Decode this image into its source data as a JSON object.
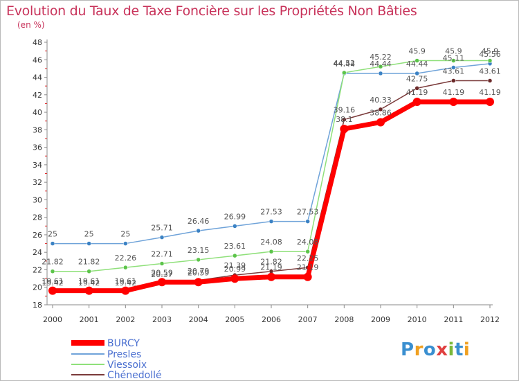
{
  "chart_data": {
    "type": "line",
    "title": "Evolution du Taux de Taxe Foncière sur les Propriétés Non Bâties",
    "ylabel": "(en %)",
    "ylim": [
      18,
      48
    ],
    "yticks": [
      18,
      20,
      22,
      24,
      26,
      28,
      30,
      32,
      34,
      36,
      38,
      40,
      42,
      44,
      46,
      48
    ],
    "categories": [
      "2000",
      "2001",
      "2002",
      "2003",
      "2004",
      "2005",
      "2006",
      "2007",
      "2008",
      "2009",
      "2010",
      "2011",
      "2012"
    ],
    "series": [
      {
        "name": "BURCY",
        "color": "#ff0000",
        "line_width": 7,
        "values": [
          19.61,
          19.61,
          19.61,
          20.59,
          20.59,
          20.99,
          21.19,
          21.19,
          38.1,
          38.86,
          41.19,
          41.19,
          41.19
        ],
        "labels": [
          "19.61",
          "19.61",
          "19.61",
          "20.59",
          "20.59",
          "20.99",
          "21.19",
          "21.19",
          "38.1",
          "38.86",
          "41.19",
          "41.19",
          "41.19"
        ]
      },
      {
        "name": "Presles",
        "color": "#6fa3d9",
        "marker_color": "#3b82c4",
        "line_width": 1.5,
        "values": [
          25,
          25,
          25,
          25.71,
          26.46,
          26.99,
          27.53,
          27.53,
          44.44,
          44.44,
          44.44,
          45.11,
          45.56
        ],
        "labels": [
          "25",
          "25",
          "25",
          "25.71",
          "26.46",
          "26.99",
          "27.53",
          "27.53",
          "44.44",
          "44.44",
          "44.44",
          "45.11",
          "45.56"
        ]
      },
      {
        "name": "Viessoix",
        "color": "#8fe07a",
        "marker_color": "#5cc44a",
        "line_width": 1.5,
        "values": [
          21.82,
          21.82,
          22.26,
          22.71,
          23.15,
          23.61,
          24.08,
          24.08,
          44.52,
          45.22,
          45.9,
          45.9,
          45.9
        ],
        "labels": [
          "21.82",
          "21.82",
          "22.26",
          "22.71",
          "23.15",
          "23.61",
          "24.08",
          "24.08",
          "44.52",
          "45.22",
          "45.9",
          "45.9",
          "45.9"
        ]
      },
      {
        "name": "Chénedollé",
        "color": "#7a3a3a",
        "marker_color": "#6b2a2a",
        "line_width": 1.5,
        "values": [
          19.42,
          19.42,
          19.42,
          20.37,
          20.79,
          21.39,
          21.82,
          22.25,
          39.16,
          40.33,
          42.75,
          43.61,
          43.61
        ],
        "labels": [
          "19.42",
          "19.42",
          "19.42",
          "20.37",
          "20.79",
          "21.39",
          "21.82",
          "22.25",
          "39.16",
          "40.33",
          "42.75",
          "43.61",
          "43.61"
        ]
      }
    ],
    "legend": "bottom-left",
    "grid": false
  },
  "logo": {
    "letters": [
      "P",
      "r",
      "o",
      "x",
      "i",
      "t",
      "i"
    ],
    "colors": [
      "#3a8fd0",
      "#f0a020",
      "#3a8fd0",
      "#e04040",
      "#7ab83a",
      "#3a8fd0",
      "#f0a020"
    ]
  }
}
